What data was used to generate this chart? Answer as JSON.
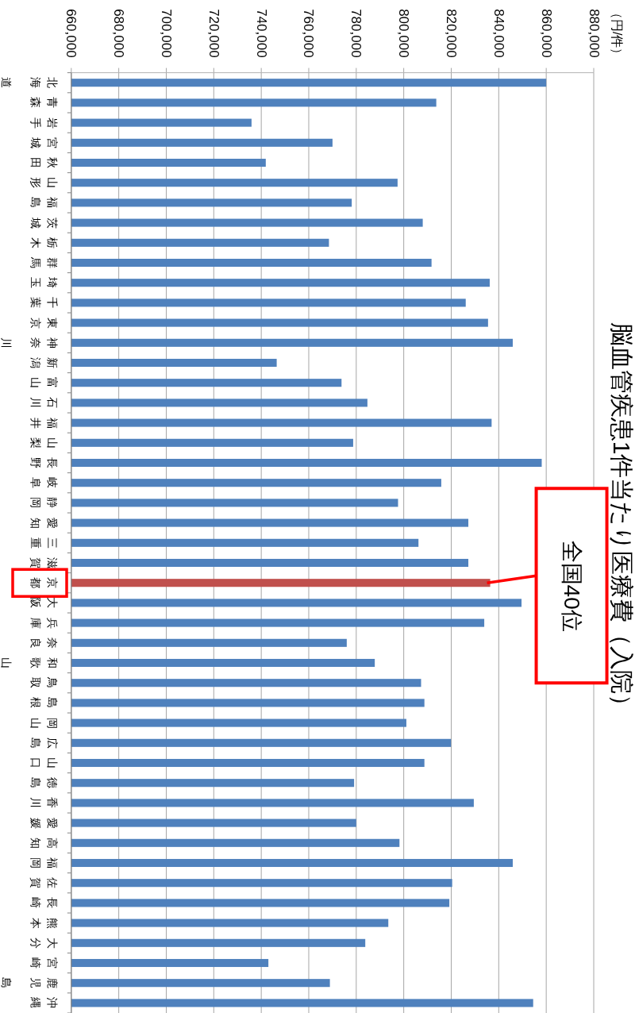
{
  "chart_data": {
    "type": "bar",
    "orientation": "horizontal",
    "title": "脳血管疾患1件当たり医療費（入院）",
    "categories": [
      "北海道",
      "青森",
      "岩手",
      "宮城",
      "秋田",
      "山形",
      "福島",
      "茨城",
      "栃木",
      "群馬",
      "埼玉",
      "千葉",
      "東京",
      "神奈川",
      "新潟",
      "富山",
      "石川",
      "福井",
      "山梨",
      "長野",
      "岐阜",
      "静岡",
      "愛知",
      "三重",
      "滋賀",
      "京都",
      "大阪",
      "兵庫",
      "奈良",
      "和歌山",
      "鳥取",
      "島根",
      "岡山",
      "広島",
      "山口",
      "徳島",
      "香川",
      "愛媛",
      "高知",
      "福岡",
      "佐賀",
      "長崎",
      "熊本",
      "大分",
      "宮崎",
      "鹿児島",
      "沖縄"
    ],
    "values": [
      860000,
      813700,
      735900,
      770000,
      741900,
      797400,
      778100,
      808000,
      768500,
      811700,
      836200,
      826100,
      835500,
      845900,
      746500,
      773800,
      784700,
      837000,
      778700,
      858100,
      815800,
      797600,
      827200,
      806200,
      827200,
      836400,
      849600,
      833900,
      776000,
      787800,
      807300,
      808700,
      801100,
      819900,
      808700,
      779100,
      829500,
      780000,
      798200,
      845900,
      820400,
      819200,
      793500,
      783800,
      743000,
      768900,
      854500
    ],
    "colors": [
      "#4f81bd",
      "#4f81bd",
      "#4f81bd",
      "#4f81bd",
      "#4f81bd",
      "#4f81bd",
      "#4f81bd",
      "#4f81bd",
      "#4f81bd",
      "#4f81bd",
      "#4f81bd",
      "#4f81bd",
      "#4f81bd",
      "#4f81bd",
      "#4f81bd",
      "#4f81bd",
      "#4f81bd",
      "#4f81bd",
      "#4f81bd",
      "#4f81bd",
      "#4f81bd",
      "#4f81bd",
      "#4f81bd",
      "#4f81bd",
      "#4f81bd",
      "#c0504d",
      "#4f81bd",
      "#4f81bd",
      "#4f81bd",
      "#4f81bd",
      "#4f81bd",
      "#4f81bd",
      "#4f81bd",
      "#4f81bd",
      "#4f81bd",
      "#4f81bd",
      "#4f81bd",
      "#4f81bd",
      "#4f81bd",
      "#4f81bd",
      "#4f81bd",
      "#4f81bd",
      "#4f81bd",
      "#4f81bd",
      "#4f81bd",
      "#4f81bd",
      "#4f81bd"
    ],
    "xlim": [
      660000,
      880000
    ],
    "xticks": [
      {
        "value": 660000,
        "label": "660,000"
      },
      {
        "value": 680000,
        "label": "680,000"
      },
      {
        "value": 700000,
        "label": "700,000"
      },
      {
        "value": 720000,
        "label": "720,000"
      },
      {
        "value": 740000,
        "label": "740,000"
      },
      {
        "value": 760000,
        "label": "760,000"
      },
      {
        "value": 780000,
        "label": "780,000"
      },
      {
        "value": 800000,
        "label": "800,000"
      },
      {
        "value": 820000,
        "label": "820,000"
      },
      {
        "value": 840000,
        "label": "840,000"
      },
      {
        "value": 860000,
        "label": "860,000"
      },
      {
        "value": 880000,
        "label": "880,000"
      }
    ],
    "grid": "x",
    "annotations": [
      "（円/件）",
      {
        "text": "全国40位",
        "x": 836400,
        "y": "京都"
      }
    ]
  }
}
